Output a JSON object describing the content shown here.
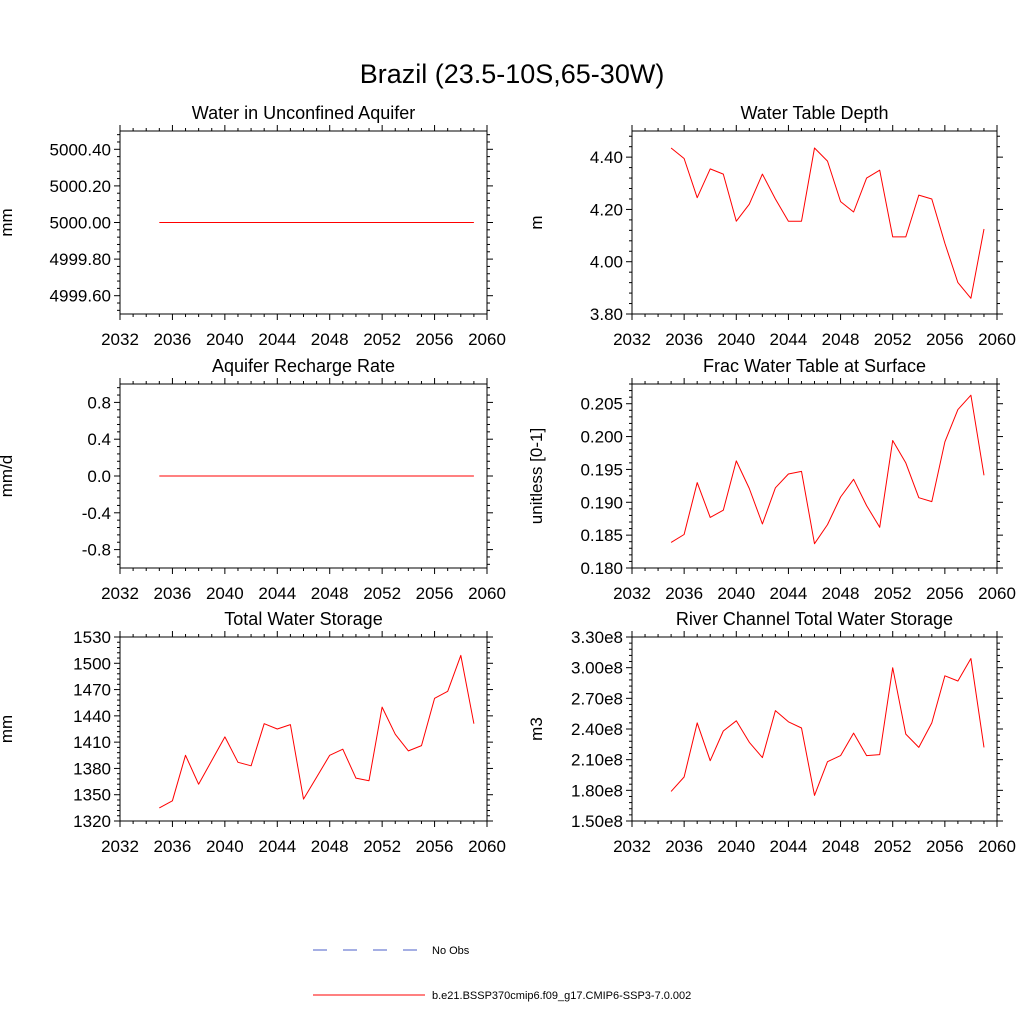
{
  "page": {
    "title": "Brazil (23.5-10S,65-30W)"
  },
  "legend": {
    "items": [
      {
        "label": "No Obs",
        "color": "#4b5fc8",
        "style": "dashed"
      },
      {
        "label": "b.e21.BSSP370cmip6.f09_g17.CMIP6-SSP3-7.0.002",
        "color": "#ff0000",
        "style": "solid"
      }
    ]
  },
  "chart_data": [
    {
      "type": "line",
      "title": "Water in Unconfined Aquifer",
      "ylabel": "mm",
      "xlabel": "",
      "xlim": [
        2032,
        2060
      ],
      "ylim": [
        4999.5,
        5000.5
      ],
      "xticks": [
        2032,
        2036,
        2040,
        2044,
        2048,
        2052,
        2056,
        2060
      ],
      "xtick_labels": [
        "2032",
        "2036",
        "2040",
        "2044",
        "2048",
        "2052",
        "2056",
        "2060"
      ],
      "yticks": [
        4999.6,
        4999.8,
        5000.0,
        5000.2,
        5000.4
      ],
      "ytick_labels": [
        "4999.60",
        "4999.80",
        "5000.00",
        "5000.20",
        "5000.40"
      ],
      "series": [
        {
          "name": "b.e21.BSSP370cmip6.f09_g17.CMIP6-SSP3-7.0.002",
          "color": "#ff0000",
          "x": [
            2035,
            2036,
            2037,
            2038,
            2039,
            2040,
            2041,
            2042,
            2043,
            2044,
            2045,
            2046,
            2047,
            2048,
            2049,
            2050,
            2051,
            2052,
            2053,
            2054,
            2055,
            2056,
            2057,
            2058,
            2059
          ],
          "y": [
            5000,
            5000,
            5000,
            5000,
            5000,
            5000,
            5000,
            5000,
            5000,
            5000,
            5000,
            5000,
            5000,
            5000,
            5000,
            5000,
            5000,
            5000,
            5000,
            5000,
            5000,
            5000,
            5000,
            5000,
            5000
          ]
        }
      ]
    },
    {
      "type": "line",
      "title": "Water Table Depth",
      "ylabel": "m",
      "xlabel": "",
      "xlim": [
        2032,
        2060
      ],
      "ylim": [
        3.8,
        4.5
      ],
      "xticks": [
        2032,
        2036,
        2040,
        2044,
        2048,
        2052,
        2056,
        2060
      ],
      "xtick_labels": [
        "2032",
        "2036",
        "2040",
        "2044",
        "2048",
        "2052",
        "2056",
        "2060"
      ],
      "yticks": [
        3.8,
        4.0,
        4.2,
        4.4
      ],
      "ytick_labels": [
        "3.80",
        "4.00",
        "4.20",
        "4.40"
      ],
      "series": [
        {
          "name": "b.e21.BSSP370cmip6.f09_g17.CMIP6-SSP3-7.0.002",
          "color": "#ff0000",
          "x": [
            2035,
            2036,
            2037,
            2038,
            2039,
            2040,
            2041,
            2042,
            2043,
            2044,
            2045,
            2046,
            2047,
            2048,
            2049,
            2050,
            2051,
            2052,
            2053,
            2054,
            2055,
            2056,
            2057,
            2058,
            2059
          ],
          "y": [
            4.435,
            4.395,
            4.245,
            4.355,
            4.335,
            4.155,
            4.22,
            4.335,
            4.24,
            4.155,
            4.155,
            4.435,
            4.385,
            4.23,
            4.19,
            4.32,
            4.35,
            4.095,
            4.095,
            4.255,
            4.24,
            4.07,
            3.92,
            3.86,
            4.125
          ]
        }
      ]
    },
    {
      "type": "line",
      "title": "Aquifer Recharge Rate",
      "ylabel": "mm/d",
      "xlabel": "",
      "xlim": [
        2032,
        2060
      ],
      "ylim": [
        -1.0,
        1.0
      ],
      "xticks": [
        2032,
        2036,
        2040,
        2044,
        2048,
        2052,
        2056,
        2060
      ],
      "xtick_labels": [
        "2032",
        "2036",
        "2040",
        "2044",
        "2048",
        "2052",
        "2056",
        "2060"
      ],
      "yticks": [
        -0.8,
        -0.4,
        0.0,
        0.4,
        0.8
      ],
      "ytick_labels": [
        "-0.8",
        "-0.4",
        "0.0",
        "0.4",
        "0.8"
      ],
      "series": [
        {
          "name": "b.e21.BSSP370cmip6.f09_g17.CMIP6-SSP3-7.0.002",
          "color": "#ff0000",
          "x": [
            2035,
            2036,
            2037,
            2038,
            2039,
            2040,
            2041,
            2042,
            2043,
            2044,
            2045,
            2046,
            2047,
            2048,
            2049,
            2050,
            2051,
            2052,
            2053,
            2054,
            2055,
            2056,
            2057,
            2058,
            2059
          ],
          "y": [
            0,
            0,
            0,
            0,
            0,
            0,
            0,
            0,
            0,
            0,
            0,
            0,
            0,
            0,
            0,
            0,
            0,
            0,
            0,
            0,
            0,
            0,
            0,
            0,
            0
          ]
        }
      ]
    },
    {
      "type": "line",
      "title": "Frac Water Table at Surface",
      "ylabel": "unitless [0-1]",
      "xlabel": "",
      "xlim": [
        2032,
        2060
      ],
      "ylim": [
        0.18,
        0.208
      ],
      "xticks": [
        2032,
        2036,
        2040,
        2044,
        2048,
        2052,
        2056,
        2060
      ],
      "xtick_labels": [
        "2032",
        "2036",
        "2040",
        "2044",
        "2048",
        "2052",
        "2056",
        "2060"
      ],
      "yticks": [
        0.18,
        0.185,
        0.19,
        0.195,
        0.2,
        0.205
      ],
      "ytick_labels": [
        "0.180",
        "0.185",
        "0.190",
        "0.195",
        "0.200",
        "0.205"
      ],
      "series": [
        {
          "name": "b.e21.BSSP370cmip6.f09_g17.CMIP6-SSP3-7.0.002",
          "color": "#ff0000",
          "x": [
            2035,
            2036,
            2037,
            2038,
            2039,
            2040,
            2041,
            2042,
            2043,
            2044,
            2045,
            2046,
            2047,
            2048,
            2049,
            2050,
            2051,
            2052,
            2053,
            2054,
            2055,
            2056,
            2057,
            2058,
            2059
          ],
          "y": [
            0.1839,
            0.1851,
            0.193,
            0.1877,
            0.1888,
            0.1963,
            0.1921,
            0.1867,
            0.1922,
            0.1943,
            0.1947,
            0.1837,
            0.1866,
            0.1908,
            0.1935,
            0.1895,
            0.1862,
            0.1994,
            0.196,
            0.1907,
            0.1901,
            0.1992,
            0.2041,
            0.2063,
            0.1941
          ]
        }
      ]
    },
    {
      "type": "line",
      "title": "Total Water Storage",
      "ylabel": "mm",
      "xlabel": "",
      "xlim": [
        2032,
        2060
      ],
      "ylim": [
        1320,
        1530
      ],
      "xticks": [
        2032,
        2036,
        2040,
        2044,
        2048,
        2052,
        2056,
        2060
      ],
      "xtick_labels": [
        "2032",
        "2036",
        "2040",
        "2044",
        "2048",
        "2052",
        "2056",
        "2060"
      ],
      "yticks": [
        1320,
        1350,
        1380,
        1410,
        1440,
        1470,
        1500,
        1530
      ],
      "ytick_labels": [
        "1320",
        "1350",
        "1380",
        "1410",
        "1440",
        "1470",
        "1500",
        "1530"
      ],
      "series": [
        {
          "name": "b.e21.BSSP370cmip6.f09_g17.CMIP6-SSP3-7.0.002",
          "color": "#ff0000",
          "x": [
            2035,
            2036,
            2037,
            2038,
            2039,
            2040,
            2041,
            2042,
            2043,
            2044,
            2045,
            2046,
            2047,
            2048,
            2049,
            2050,
            2051,
            2052,
            2053,
            2054,
            2055,
            2056,
            2057,
            2058,
            2059
          ],
          "y": [
            1335,
            1343,
            1395,
            1362,
            1389,
            1416,
            1387,
            1383,
            1431,
            1425,
            1430,
            1345,
            1370,
            1395,
            1402,
            1369,
            1366,
            1450,
            1419,
            1400,
            1406,
            1460,
            1468,
            1509,
            1431
          ]
        }
      ]
    },
    {
      "type": "line",
      "title": "River Channel Total Water Storage",
      "ylabel": "m3",
      "xlabel": "",
      "xlim": [
        2032,
        2060
      ],
      "ylim": [
        150000000,
        330000000
      ],
      "xticks": [
        2032,
        2036,
        2040,
        2044,
        2048,
        2052,
        2056,
        2060
      ],
      "xtick_labels": [
        "2032",
        "2036",
        "2040",
        "2044",
        "2048",
        "2052",
        "2056",
        "2060"
      ],
      "yticks": [
        150000000,
        180000000,
        210000000,
        240000000,
        270000000,
        300000000,
        330000000
      ],
      "ytick_labels": [
        "1.50e8",
        "1.80e8",
        "2.10e8",
        "2.40e8",
        "2.70e8",
        "3.00e8",
        "3.30e8"
      ],
      "series": [
        {
          "name": "b.e21.BSSP370cmip6.f09_g17.CMIP6-SSP3-7.0.002",
          "color": "#ff0000",
          "x": [
            2035,
            2036,
            2037,
            2038,
            2039,
            2040,
            2041,
            2042,
            2043,
            2044,
            2045,
            2046,
            2047,
            2048,
            2049,
            2050,
            2051,
            2052,
            2053,
            2054,
            2055,
            2056,
            2057,
            2058,
            2059
          ],
          "y": [
            179000000,
            193000000,
            246000000,
            209000000,
            238000000,
            248000000,
            227000000,
            212000000,
            258000000,
            247000000,
            241000000,
            175000000,
            208000000,
            214000000,
            236000000,
            214000000,
            215000000,
            300000000,
            235000000,
            222000000,
            246000000,
            292000000,
            287000000,
            309000000,
            222000000
          ]
        }
      ]
    }
  ]
}
